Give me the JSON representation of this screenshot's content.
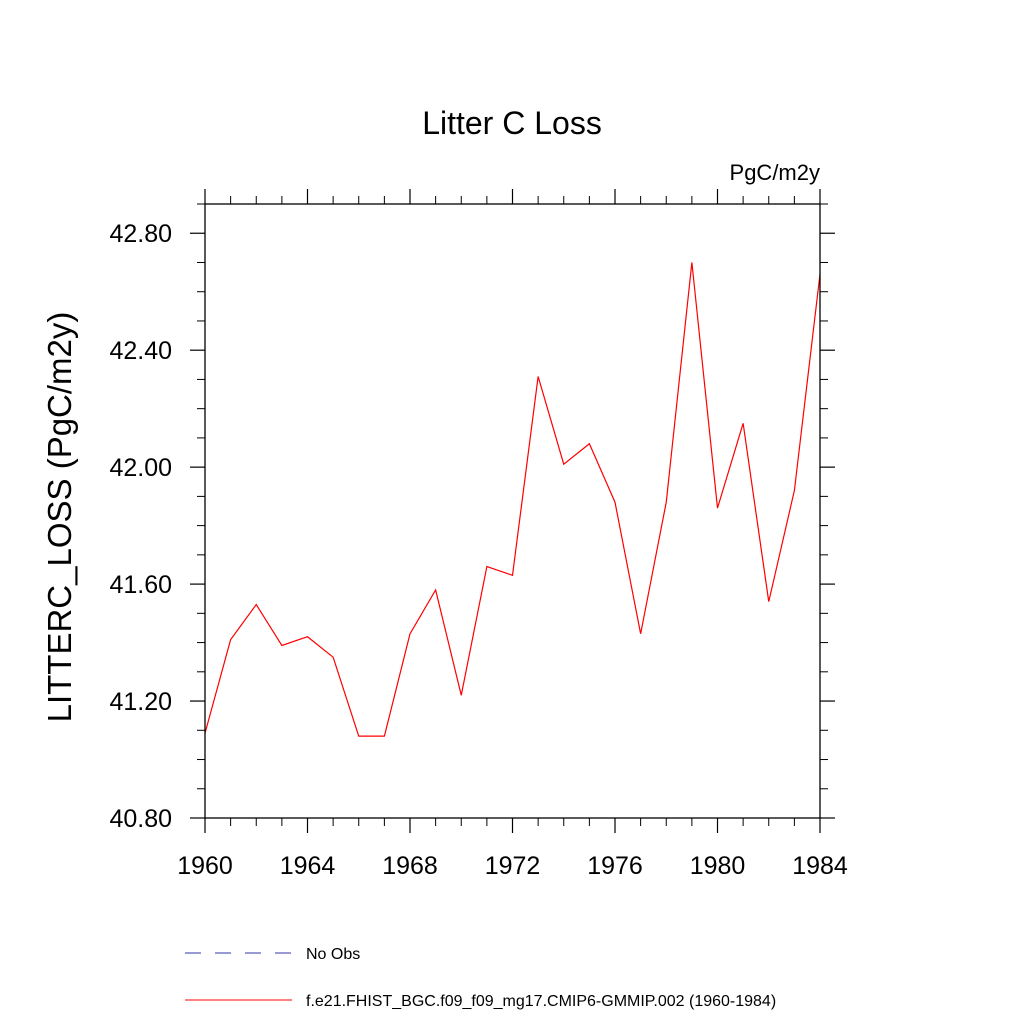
{
  "chart_data": {
    "type": "line",
    "title": "Litter C Loss",
    "units_label": "PgC/m2y",
    "ylabel": "LITTERC_LOSS  (PgC/m2y)",
    "xlabel": "",
    "xlim": [
      1960,
      1984
    ],
    "ylim": [
      40.8,
      42.9
    ],
    "x_ticks": [
      1960,
      1964,
      1968,
      1972,
      1976,
      1980,
      1984
    ],
    "x_tick_labels": [
      "1960",
      "1964",
      "1968",
      "1972",
      "1976",
      "1980",
      "1984"
    ],
    "y_ticks": [
      40.8,
      41.2,
      41.6,
      42.0,
      42.4,
      42.8
    ],
    "y_tick_labels": [
      "40.80",
      "41.20",
      "41.60",
      "42.00",
      "42.40",
      "42.80"
    ],
    "x_minor_step": 1,
    "y_minor_step": 0.1,
    "grid": false,
    "legend_position": "bottom",
    "series": [
      {
        "name": "f.e21.FHIST_BGC.f09_f09_mg17.CMIP6-GMMIP.002 (1960-1984)",
        "color": "#ff0000",
        "style": "solid",
        "x": [
          1960,
          1961,
          1962,
          1963,
          1964,
          1965,
          1966,
          1967,
          1968,
          1969,
          1970,
          1971,
          1972,
          1973,
          1974,
          1975,
          1976,
          1977,
          1978,
          1979,
          1980,
          1981,
          1982,
          1983,
          1984
        ],
        "values": [
          41.09,
          41.41,
          41.53,
          41.39,
          41.42,
          41.35,
          41.08,
          41.08,
          41.43,
          41.58,
          41.22,
          41.66,
          41.63,
          42.31,
          42.01,
          42.08,
          41.88,
          41.43,
          41.88,
          42.7,
          41.86,
          42.15,
          41.54,
          41.92,
          42.66
        ]
      }
    ],
    "legend": [
      {
        "label": "No Obs",
        "color": "#3333aa",
        "style": "dashed"
      },
      {
        "label": "f.e21.FHIST_BGC.f09_f09_mg17.CMIP6-GMMIP.002 (1960-1984)",
        "color": "#ff0000",
        "style": "solid"
      }
    ]
  }
}
